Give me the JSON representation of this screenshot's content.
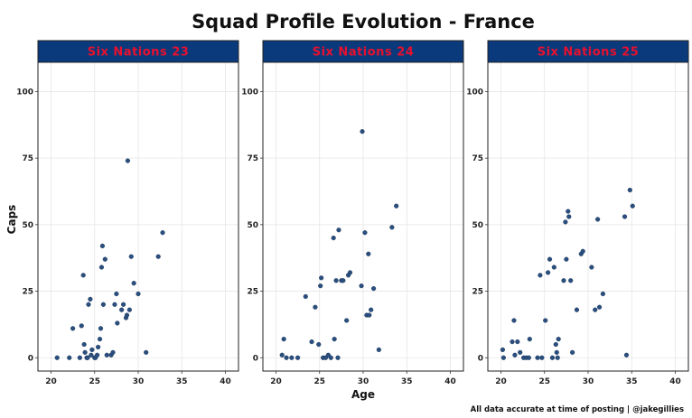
{
  "chart_data": {
    "type": "scatter",
    "title": "Squad Profile Evolution - France",
    "xlabel": "Age",
    "ylabel": "Caps",
    "caption": "All data accurate at time of posting | @jakegillies",
    "xlim": [
      18.5,
      41.5
    ],
    "ylim": [
      -5,
      111
    ],
    "x_ticks": [
      20,
      25,
      30,
      35,
      40
    ],
    "y_ticks": [
      0,
      25,
      50,
      75,
      100
    ],
    "grid": true,
    "point_color": "#2a4f7f",
    "strip_color": "#0a3a7c",
    "strip_text_color": "#e8102e",
    "panels": [
      {
        "label": "Six Nations 23",
        "points": [
          [
            20.7,
            0
          ],
          [
            22.1,
            0
          ],
          [
            22.5,
            11
          ],
          [
            23.3,
            0
          ],
          [
            23.5,
            12
          ],
          [
            23.7,
            31
          ],
          [
            23.8,
            5
          ],
          [
            23.9,
            2
          ],
          [
            24.1,
            0
          ],
          [
            24.2,
            0
          ],
          [
            24.3,
            20
          ],
          [
            24.5,
            22
          ],
          [
            24.6,
            1
          ],
          [
            24.7,
            3
          ],
          [
            25.0,
            0
          ],
          [
            25.1,
            0
          ],
          [
            25.4,
            4
          ],
          [
            25.6,
            7
          ],
          [
            25.7,
            11
          ],
          [
            25.8,
            34
          ],
          [
            25.9,
            42
          ],
          [
            26.0,
            20
          ],
          [
            26.2,
            37
          ],
          [
            26.4,
            1
          ],
          [
            26.9,
            1
          ],
          [
            27.1,
            2
          ],
          [
            27.3,
            20
          ],
          [
            27.5,
            24
          ],
          [
            27.6,
            13
          ],
          [
            28.1,
            18
          ],
          [
            28.6,
            15
          ],
          [
            28.7,
            16
          ],
          [
            28.8,
            74
          ],
          [
            29.0,
            18
          ],
          [
            29.2,
            38
          ],
          [
            29.5,
            28
          ],
          [
            30.0,
            24
          ],
          [
            30.9,
            2
          ],
          [
            32.3,
            38
          ],
          [
            32.8,
            47
          ],
          [
            25.3,
            1
          ],
          [
            28.3,
            20
          ]
        ]
      },
      {
        "label": "Six Nations 24",
        "points": [
          [
            20.7,
            1
          ],
          [
            20.9,
            7
          ],
          [
            21.2,
            0
          ],
          [
            21.8,
            0
          ],
          [
            22.5,
            0
          ],
          [
            23.4,
            23
          ],
          [
            24.1,
            6
          ],
          [
            24.5,
            19
          ],
          [
            24.9,
            5
          ],
          [
            25.1,
            27
          ],
          [
            25.2,
            30
          ],
          [
            25.4,
            0
          ],
          [
            25.7,
            0
          ],
          [
            26.0,
            1
          ],
          [
            26.3,
            0
          ],
          [
            26.6,
            45
          ],
          [
            26.7,
            7
          ],
          [
            26.9,
            29
          ],
          [
            27.1,
            0
          ],
          [
            27.2,
            48
          ],
          [
            27.5,
            29
          ],
          [
            28.1,
            14
          ],
          [
            28.3,
            31
          ],
          [
            28.5,
            32
          ],
          [
            29.8,
            27
          ],
          [
            29.9,
            85
          ],
          [
            30.2,
            47
          ],
          [
            30.4,
            16
          ],
          [
            30.6,
            39
          ],
          [
            30.7,
            16
          ],
          [
            30.9,
            18
          ],
          [
            31.2,
            26
          ],
          [
            31.8,
            3
          ],
          [
            33.3,
            49
          ],
          [
            33.8,
            57
          ],
          [
            27.7,
            29
          ]
        ]
      },
      {
        "label": "Six Nations 25",
        "points": [
          [
            20.2,
            3
          ],
          [
            20.3,
            0
          ],
          [
            21.3,
            6
          ],
          [
            21.5,
            14
          ],
          [
            21.6,
            1
          ],
          [
            21.9,
            6
          ],
          [
            22.2,
            2
          ],
          [
            22.6,
            0
          ],
          [
            22.9,
            0
          ],
          [
            23.2,
            0
          ],
          [
            23.3,
            7
          ],
          [
            24.2,
            0
          ],
          [
            24.5,
            31
          ],
          [
            24.7,
            0
          ],
          [
            25.1,
            14
          ],
          [
            25.4,
            32
          ],
          [
            25.6,
            37
          ],
          [
            25.9,
            0
          ],
          [
            26.1,
            34
          ],
          [
            26.3,
            5
          ],
          [
            26.4,
            2
          ],
          [
            26.5,
            0
          ],
          [
            26.6,
            7
          ],
          [
            27.2,
            29
          ],
          [
            27.4,
            51
          ],
          [
            27.5,
            37
          ],
          [
            27.7,
            55
          ],
          [
            27.8,
            53
          ],
          [
            28.0,
            29
          ],
          [
            28.2,
            2
          ],
          [
            28.7,
            18
          ],
          [
            29.2,
            39
          ],
          [
            29.4,
            40
          ],
          [
            30.4,
            34
          ],
          [
            30.8,
            18
          ],
          [
            31.1,
            52
          ],
          [
            31.3,
            19
          ],
          [
            31.7,
            24
          ],
          [
            34.2,
            53
          ],
          [
            34.4,
            1
          ],
          [
            34.8,
            63
          ],
          [
            35.1,
            57
          ]
        ]
      }
    ]
  }
}
